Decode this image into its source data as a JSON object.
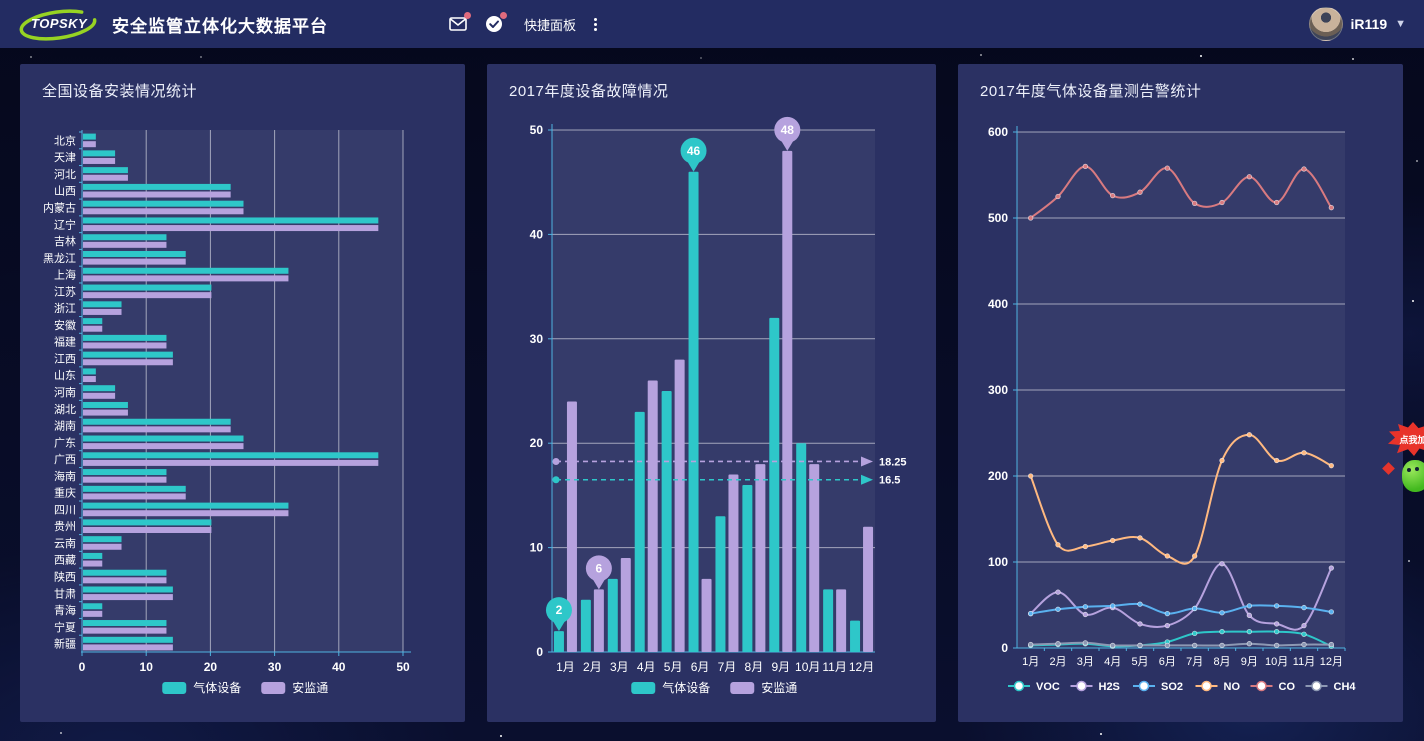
{
  "header": {
    "logo_text": "TOPSKY",
    "title": "安全监管立体化大数据平台",
    "quick_panel_label": "快捷面板",
    "username": "iR119"
  },
  "mascot": {
    "bubble_text": "点我加"
  },
  "colors": {
    "teal": "#2ec7c9",
    "purple": "#b6a2de",
    "blue": "#5ab1ef",
    "orange": "#ffb980",
    "salmon": "#d87a80",
    "gray": "#8d98b3",
    "axis": "#4fb3e0",
    "badge": "#e06b7d",
    "grid": "rgba(255,255,255,0.55)",
    "panel": "#2b3163",
    "plot_overlay": "rgba(255,255,255,0.05)"
  },
  "chart_data": [
    {
      "type": "bar",
      "orientation": "horizontal",
      "title": "全国设备安装情况统计",
      "categories": [
        "北京",
        "天津",
        "河北",
        "山西",
        "内蒙古",
        "辽宁",
        "吉林",
        "黑龙江",
        "上海",
        "江苏",
        "浙江",
        "安徽",
        "福建",
        "江西",
        "山东",
        "河南",
        "湖北",
        "湖南",
        "广东",
        "广西",
        "海南",
        "重庆",
        "四川",
        "贵州",
        "云南",
        "西藏",
        "陕西",
        "甘肃",
        "青海",
        "宁夏",
        "新疆"
      ],
      "series": [
        {
          "name": "气体设备",
          "color": "#2ec7c9",
          "values": [
            2,
            5,
            7,
            23,
            25,
            46,
            13,
            16,
            32,
            20,
            6,
            3,
            13,
            14,
            2,
            5,
            7,
            23,
            25,
            46,
            13,
            16,
            32,
            20,
            6,
            3,
            13,
            14,
            3,
            13,
            14
          ]
        },
        {
          "name": "安监通",
          "color": "#b6a2de",
          "values": [
            2,
            5,
            7,
            23,
            25,
            46,
            13,
            16,
            32,
            20,
            6,
            3,
            13,
            14,
            2,
            5,
            7,
            23,
            25,
            46,
            13,
            16,
            32,
            20,
            6,
            3,
            13,
            14,
            3,
            13,
            14
          ]
        }
      ],
      "xlim": [
        0,
        50
      ],
      "xticks": [
        0,
        10,
        20,
        30,
        40,
        50
      ],
      "legend_position": "bottom",
      "grid": true
    },
    {
      "type": "bar",
      "orientation": "vertical",
      "title": "2017年度设备故障情况",
      "categories": [
        "1月",
        "2月",
        "3月",
        "4月",
        "5月",
        "6月",
        "7月",
        "8月",
        "9月",
        "10月",
        "11月",
        "12月"
      ],
      "series": [
        {
          "name": "气体设备",
          "color": "#2ec7c9",
          "values": [
            2,
            5,
            7,
            23,
            25,
            46,
            13,
            16,
            32,
            20,
            6,
            3
          ]
        },
        {
          "name": "安监通",
          "color": "#b6a2de",
          "values": [
            24,
            6,
            9,
            26,
            28,
            7,
            17,
            18,
            48,
            18,
            6,
            12
          ]
        }
      ],
      "ylim": [
        0,
        50
      ],
      "yticks": [
        0,
        10,
        20,
        30,
        40,
        50
      ],
      "marks": [
        {
          "series": "气体设备",
          "type": "max",
          "category": "6月",
          "value": 46
        },
        {
          "series": "气体设备",
          "type": "min",
          "category": "1月",
          "value": 2
        },
        {
          "series": "安监通",
          "type": "max",
          "category": "9月",
          "value": 48
        },
        {
          "series": "安监通",
          "type": "min",
          "category": "2月",
          "value": 6
        }
      ],
      "average_lines": [
        {
          "series": "安监通",
          "value": 18.25,
          "label": "18.25"
        },
        {
          "series": "气体设备",
          "value": 16.5,
          "label": "16.5"
        }
      ],
      "legend_position": "bottom",
      "grid": true
    },
    {
      "type": "line",
      "smooth": true,
      "title": "2017年度气体设备量测告警统计",
      "categories": [
        "1月",
        "2月",
        "3月",
        "4月",
        "5月",
        "6月",
        "7月",
        "8月",
        "9月",
        "10月",
        "11月",
        "12月"
      ],
      "series": [
        {
          "name": "VOC",
          "color": "#2ec7c9",
          "values": [
            3,
            4,
            5,
            2,
            3,
            7,
            17,
            19,
            19,
            19,
            16,
            2
          ]
        },
        {
          "name": "H2S",
          "color": "#b6a2de",
          "values": [
            40,
            65,
            39,
            47,
            28,
            26,
            46,
            98,
            38,
            28,
            26,
            93
          ]
        },
        {
          "name": "SO2",
          "color": "#5ab1ef",
          "values": [
            40,
            45,
            48,
            49,
            51,
            40,
            46,
            41,
            49,
            49,
            47,
            42
          ]
        },
        {
          "name": "NO",
          "color": "#ffb980",
          "values": [
            200,
            120,
            118,
            125,
            128,
            107,
            107,
            218,
            248,
            218,
            227,
            212
          ]
        },
        {
          "name": "CO",
          "color": "#d87a80",
          "values": [
            500,
            525,
            560,
            526,
            530,
            558,
            517,
            518,
            548,
            518,
            557,
            512
          ]
        },
        {
          "name": "CH4",
          "color": "#8d98b3",
          "values": [
            4,
            5,
            6,
            3,
            3,
            3,
            3,
            3,
            5,
            3,
            4,
            4
          ]
        }
      ],
      "ylim": [
        0,
        600
      ],
      "yticks": [
        0,
        100,
        200,
        300,
        400,
        500,
        600
      ],
      "legend_position": "bottom",
      "grid": true
    }
  ]
}
